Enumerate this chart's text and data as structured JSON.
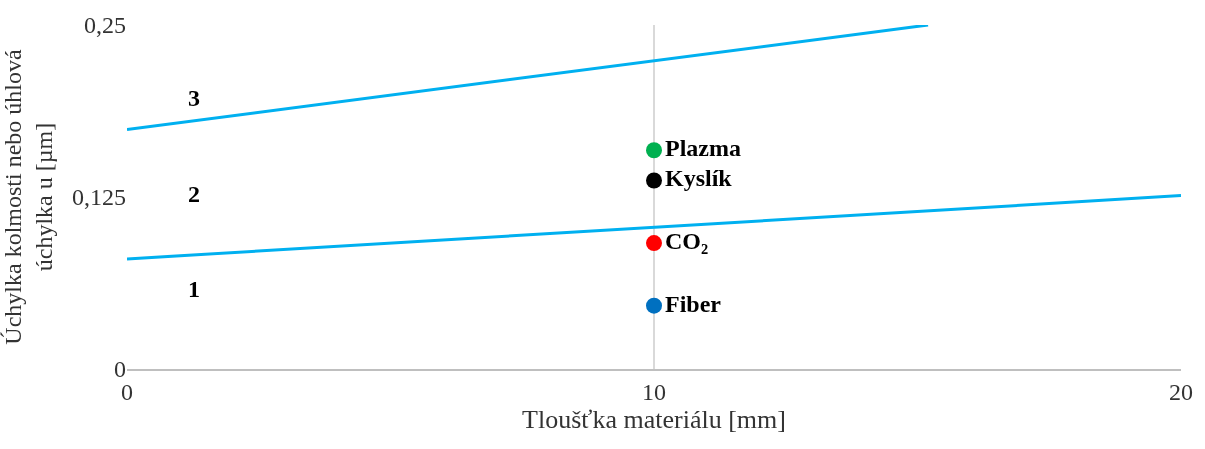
{
  "chart_data": {
    "type": "scatter",
    "xlabel": "Tloušťka materiálu [mm]",
    "ylabel": "Úchylka kolmosti nebo úhlová úchylka u [µm]",
    "xlim": [
      0,
      20
    ],
    "xticks": [
      0,
      10,
      20
    ],
    "ylim": [
      0,
      0.25
    ],
    "yticks": [
      {
        "value": 0,
        "label": "0"
      },
      {
        "value": 0.125,
        "label": "0,125"
      },
      {
        "value": 0.25,
        "label": "0,25"
      }
    ],
    "grid": "x",
    "legend": false,
    "series": [
      {
        "type": "line",
        "color": "#00b0f0",
        "x": [
          0,
          20
        ],
        "values": [
          0.08,
          0.126
        ]
      },
      {
        "type": "line",
        "color": "#00b0f0",
        "x": [
          0,
          15.2
        ],
        "values": [
          0.174,
          0.25
        ]
      },
      {
        "name": "Plazma",
        "color": "#00b050",
        "marker": "circle",
        "x": [
          10
        ],
        "values": [
          0.159
        ]
      },
      {
        "name": "Kyslík",
        "color": "#000000",
        "marker": "circle",
        "x": [
          10
        ],
        "values": [
          0.137
        ]
      },
      {
        "name": "CO₂",
        "color": "#ff0000",
        "marker": "circle",
        "x": [
          10
        ],
        "values": [
          0.0915
        ]
      },
      {
        "name": "Fiber",
        "color": "#0070c0",
        "marker": "circle",
        "x": [
          10
        ],
        "values": [
          0.046
        ]
      }
    ],
    "annotations": [
      "3",
      "2",
      "1"
    ]
  }
}
